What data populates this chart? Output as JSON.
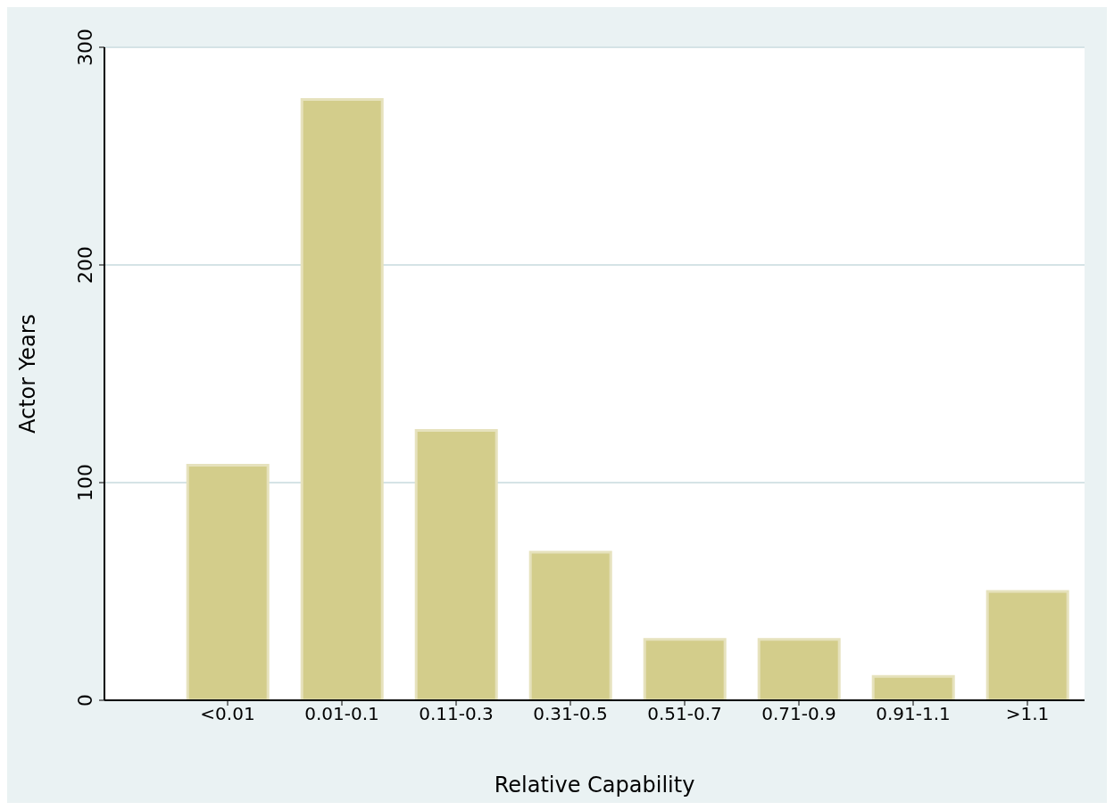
{
  "chart_data": {
    "type": "bar",
    "xlabel": "Relative Capability",
    "ylabel": "Actor Years",
    "categories": [
      "<0.01",
      "0.01-0.1",
      "0.11-0.3",
      "0.31-0.5",
      "0.51-0.7",
      "0.71-0.9",
      "0.91-1.1",
      ">1.1"
    ],
    "values": [
      108,
      276,
      124,
      68,
      28,
      28,
      11,
      50
    ],
    "color": "#d3cd8b",
    "ylim": [
      0,
      300
    ],
    "yticks": [
      0,
      100,
      200,
      300
    ],
    "grid": "y"
  }
}
